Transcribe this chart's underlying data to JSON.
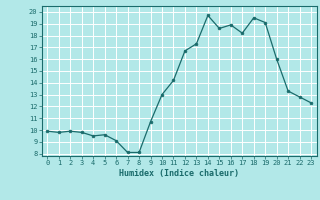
{
  "x": [
    0,
    1,
    2,
    3,
    4,
    5,
    6,
    7,
    8,
    9,
    10,
    11,
    12,
    13,
    14,
    15,
    16,
    17,
    18,
    19,
    20,
    21,
    22,
    23
  ],
  "y": [
    9.9,
    9.8,
    9.9,
    9.8,
    9.5,
    9.6,
    9.1,
    8.1,
    8.1,
    10.7,
    13.0,
    14.2,
    16.7,
    17.3,
    19.7,
    18.6,
    18.9,
    18.2,
    19.5,
    19.1,
    16.0,
    13.3,
    12.8,
    12.3
  ],
  "xlabel": "Humidex (Indice chaleur)",
  "xlim": [
    -0.5,
    23.5
  ],
  "ylim": [
    7.8,
    20.5
  ],
  "yticks": [
    8,
    9,
    10,
    11,
    12,
    13,
    14,
    15,
    16,
    17,
    18,
    19,
    20
  ],
  "xticks": [
    0,
    1,
    2,
    3,
    4,
    5,
    6,
    7,
    8,
    9,
    10,
    11,
    12,
    13,
    14,
    15,
    16,
    17,
    18,
    19,
    20,
    21,
    22,
    23
  ],
  "line_color": "#1a6b6b",
  "marker_color": "#1a6b6b",
  "bg_color": "#b2e8e8",
  "grid_color": "#e0ffff",
  "text_color": "#1a6b6b",
  "spine_color": "#1a6b6b"
}
